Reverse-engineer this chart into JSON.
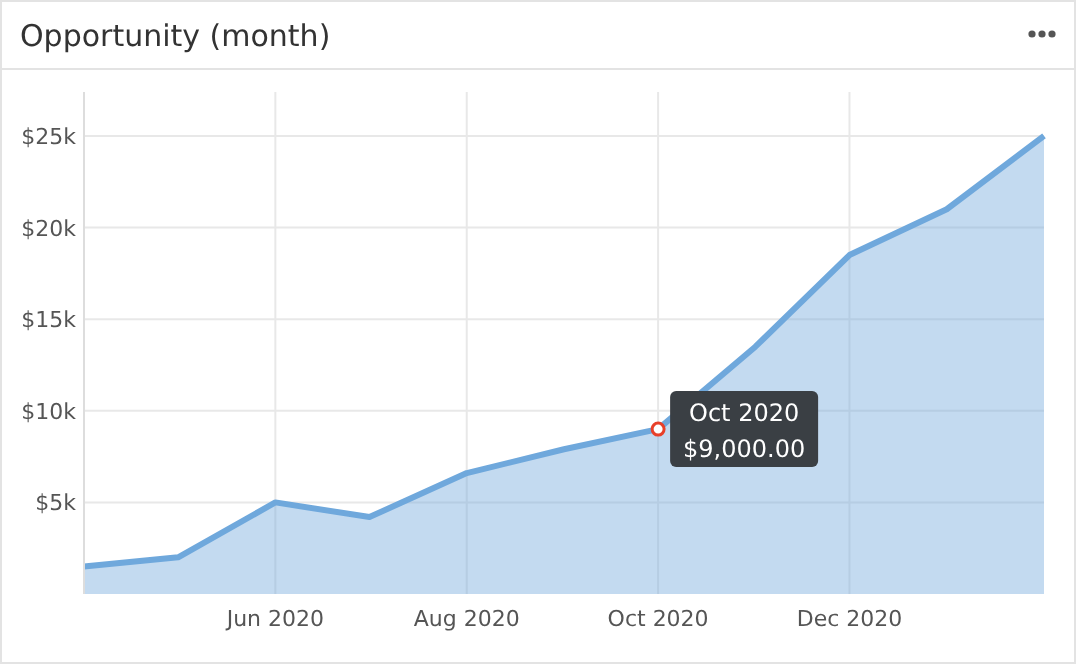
{
  "chart_data": {
    "type": "area",
    "title": "Opportunity (month)",
    "x": [
      "2020-04",
      "2020-05",
      "2020-06",
      "2020-07",
      "2020-08",
      "2020-09",
      "2020-10",
      "2020-11",
      "2020-12",
      "2021-01",
      "2021-02"
    ],
    "series": [
      {
        "color": "#6fa8dc",
        "values": [
          1500,
          2000,
          5000,
          4200,
          6600,
          7900,
          9000,
          13500,
          18500,
          21000,
          25000
        ]
      }
    ],
    "xlim": [
      "2020-04",
      "2021-02"
    ],
    "xticks": [
      {
        "value": "2020-06",
        "label": "Jun 2020"
      },
      {
        "value": "2020-08",
        "label": "Aug 2020"
      },
      {
        "value": "2020-10",
        "label": "Oct 2020"
      },
      {
        "value": "2020-12",
        "label": "Dec 2020"
      }
    ],
    "ylim": [
      0,
      27400
    ],
    "yticks": [
      {
        "value": 5000,
        "label": "$5k"
      },
      {
        "value": 10000,
        "label": "$10k"
      },
      {
        "value": 15000,
        "label": "$15k"
      },
      {
        "value": 20000,
        "label": "$20k"
      },
      {
        "value": 25000,
        "label": "$25k"
      }
    ],
    "grid": true,
    "annotations": [
      {
        "text": "Oct 2020\n$9,000.00",
        "x": "2020-10",
        "y": 9000
      }
    ]
  }
}
